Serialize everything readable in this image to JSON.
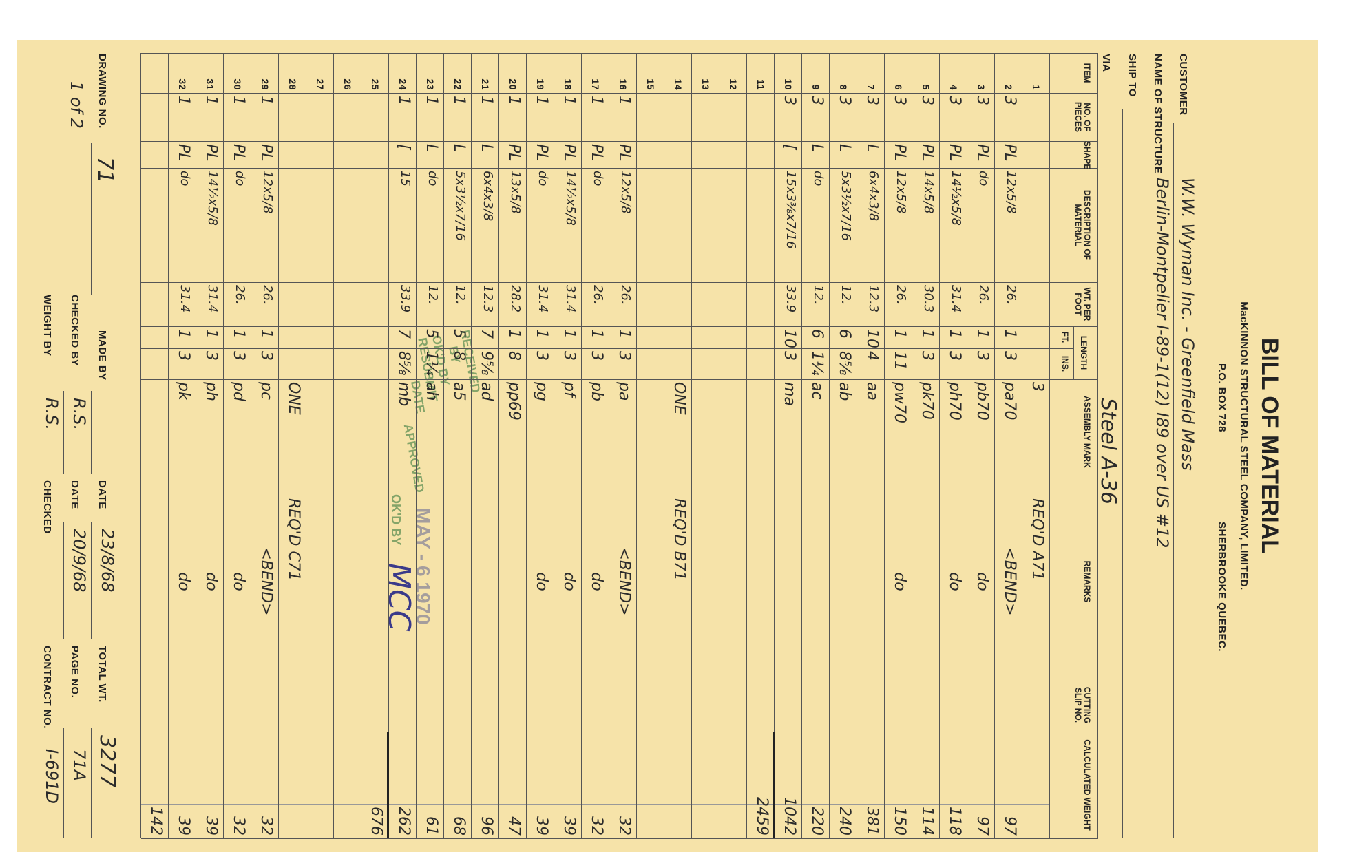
{
  "header": {
    "title": "BILL OF MATERIAL",
    "company": "MacKINNON STRUCTURAL STEEL COMPANY, LIMITED.",
    "po_box": "P.O. BOX 728",
    "city": "SHERBROOKE QUEBEC."
  },
  "fields": {
    "customer_label": "CUSTOMER",
    "customer": "W.W. Wyman Inc. - Greenfield Mass",
    "structure_label": "NAME OF STRUCTURE",
    "structure": "Berlin-Montpelier I-89-1(12) I89 over US #12",
    "ship_to_label": "SHIP TO",
    "via_label": "VIA",
    "via": "Steel A-36"
  },
  "table": {
    "columns": [
      "ITEM",
      "NO. OF PIECES",
      "SHAPE",
      "DESCRIPTION OF MATERIAL",
      "WT. PER FOOT",
      "FT.",
      "INS.",
      "ASSEMBLY MARK",
      "REMARKS",
      "CUTTING SLIP NO.",
      "CALCULATED WEIGHT"
    ],
    "length_label": "LENGTH",
    "rows": [
      [
        "1",
        null,
        null,
        null,
        null,
        null,
        null,
        "3",
        "REQ'D A71",
        null,
        null
      ],
      [
        "2",
        "3",
        "PL",
        "12x5/8",
        "26.",
        "1",
        "3",
        "pa70",
        "<BEND>",
        null,
        "97"
      ],
      [
        "3",
        "3",
        "PL",
        "do",
        "26.",
        "1",
        "3",
        "pb70",
        "do",
        null,
        "97"
      ],
      [
        "4",
        "3",
        "PL",
        "14½x5/8",
        "31.4",
        "1",
        "3",
        "ph70",
        "do",
        null,
        "118"
      ],
      [
        "5",
        "3",
        "PL",
        "14x5/8",
        "30.3",
        "1",
        "3",
        "pk70",
        null,
        null,
        "114"
      ],
      [
        "6",
        "3",
        "PL",
        "12x5/8",
        "26.",
        "1",
        "11",
        "pw70",
        "do",
        null,
        "150"
      ],
      [
        "7",
        "3",
        "L",
        "6x4x3/8",
        "12.3",
        "10",
        "4",
        "aa",
        null,
        null,
        "381"
      ],
      [
        "8",
        "3",
        "L",
        "5x3½x7/16",
        "12.",
        "6",
        "8⅝",
        "ab",
        null,
        null,
        "240"
      ],
      [
        "9",
        "3",
        "L",
        "do",
        "12.",
        "6",
        "1¼",
        "ac",
        null,
        null,
        "220"
      ],
      [
        "10",
        "3",
        "[",
        "15x3⅜x7/16",
        "33.9",
        "10",
        "3",
        "ma",
        null,
        null,
        "1042"
      ],
      [
        "11",
        null,
        null,
        null,
        null,
        null,
        null,
        null,
        null,
        null,
        "2459"
      ],
      [
        "12",
        null,
        null,
        null,
        null,
        null,
        null,
        null,
        null,
        null,
        null
      ],
      [
        "13",
        null,
        null,
        null,
        null,
        null,
        null,
        null,
        null,
        null,
        null
      ],
      [
        "14",
        null,
        null,
        null,
        null,
        null,
        null,
        "ONE",
        "REQ'D B71",
        null,
        null
      ],
      [
        "15",
        null,
        null,
        null,
        null,
        null,
        null,
        null,
        null,
        null,
        null
      ],
      [
        "16",
        "1",
        "PL",
        "12x5/8",
        "26.",
        "1",
        "3",
        "pa",
        "<BEND>",
        null,
        "32"
      ],
      [
        "17",
        "1",
        "PL",
        "do",
        "26.",
        "1",
        "3",
        "pb",
        "do",
        null,
        "32"
      ],
      [
        "18",
        "1",
        "PL",
        "14½x5/8",
        "31.4",
        "1",
        "3",
        "pf",
        "do",
        null,
        "39"
      ],
      [
        "19",
        "1",
        "PL",
        "do",
        "31.4",
        "1",
        "3",
        "pg",
        "do",
        null,
        "39"
      ],
      [
        "20",
        "1",
        "PL",
        "13x5/8",
        "28.2",
        "1",
        "8",
        "pp69",
        null,
        null,
        "47"
      ],
      [
        "21",
        "1",
        "L",
        "6x4x3/8",
        "12.3",
        "7",
        "9⅝",
        "ad",
        null,
        null,
        "96"
      ],
      [
        "22",
        "1",
        "L",
        "5x3½x7/16",
        "12.",
        "5",
        "8",
        "a5",
        null,
        null,
        "68"
      ],
      [
        "23",
        "1",
        "L",
        "do",
        "12.",
        "5",
        "1¼",
        "ah",
        null,
        null,
        "61"
      ],
      [
        "24",
        "1",
        "[",
        "15",
        "33.9",
        "7",
        "8⅝",
        "mb",
        null,
        null,
        "262"
      ],
      [
        "25",
        null,
        null,
        null,
        null,
        null,
        null,
        null,
        null,
        null,
        "676"
      ],
      [
        "26",
        null,
        null,
        null,
        null,
        null,
        null,
        null,
        null,
        null,
        null
      ],
      [
        "27",
        null,
        null,
        null,
        null,
        null,
        null,
        null,
        null,
        null,
        null
      ],
      [
        "28",
        null,
        null,
        null,
        null,
        null,
        null,
        "ONE",
        "REQ'D C71",
        null,
        null
      ],
      [
        "29",
        "1",
        "PL",
        "12x5/8",
        "26.",
        "1",
        "3",
        "pc",
        "<BEND>",
        null,
        "32"
      ],
      [
        "30",
        "1",
        "PL",
        "do",
        "26.",
        "1",
        "3",
        "pd",
        "do",
        null,
        "32"
      ],
      [
        "31",
        "1",
        "PL",
        "14½x5/8",
        "31.4",
        "1",
        "3",
        "ph",
        "do",
        null,
        "39"
      ],
      [
        "32",
        "1",
        "PL",
        "do",
        "31.4",
        "1",
        "3",
        "pk",
        "do",
        null,
        "39"
      ],
      [
        null,
        null,
        null,
        null,
        null,
        null,
        null,
        null,
        null,
        null,
        "142"
      ]
    ]
  },
  "footer": {
    "drawing_no_label": "DRAWING NO.",
    "drawing_no": "71",
    "sheet": "1 of 2",
    "made_by_label": "MADE BY",
    "date_label": "DATE",
    "date": "23/8/68",
    "total_wt_label": "TOTAL WT.",
    "total_wt": "3277",
    "checked_by_label": "CHECKED BY",
    "checked_by": "R.S.",
    "date2_label": "DATE",
    "date2": "20/9/68",
    "page_no_label": "PAGE NO.",
    "page_no": "71A",
    "weight_by_label": "WEIGHT BY",
    "weight_by": "R.S.",
    "checked_label": "CHECKED",
    "contract_no_label": "CONTRACT NO.",
    "contract_no": "I-691D"
  },
  "stamp": {
    "received": "RECEIVED",
    "by": "BY",
    "okd_by": "OK'D BY",
    "resubmit": "RESUBMIT",
    "date": "DATE",
    "approved": "APPROVED",
    "stamp_date": "MAY - 6 1970",
    "okd_by_2": "OK'D BY",
    "initials": "MCC"
  }
}
